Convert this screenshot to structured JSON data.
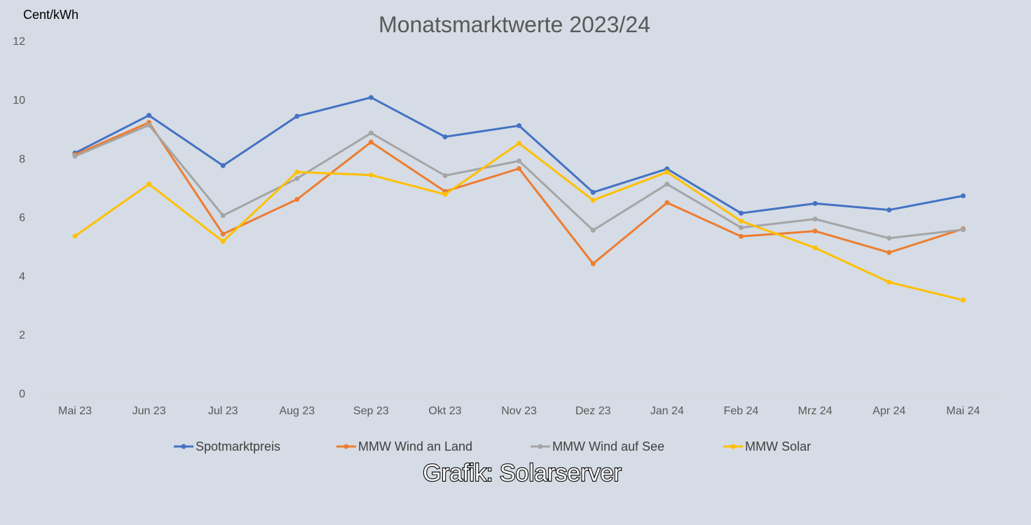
{
  "chart_data": {
    "type": "line",
    "title": "Monatsmarktwerte 2023/24",
    "ylabel": "Cent/kWh",
    "xlabel": "",
    "categories": [
      "Mai 23",
      "Jun 23",
      "Jul 23",
      "Aug 23",
      "Sep 23",
      "Okt 23",
      "Nov 23",
      "Dez 23",
      "Jan 24",
      "Feb 24",
      "Mrz 24",
      "Apr 24",
      "Mai 24"
    ],
    "ylim": [
      0,
      12
    ],
    "yticks": [
      0,
      2,
      4,
      6,
      8,
      10,
      12
    ],
    "grid": false,
    "legend_position": "bottom",
    "series": [
      {
        "name": "Spotmarktpreis",
        "color": "#4472c4",
        "values": [
          8.18,
          9.46,
          7.75,
          9.43,
          10.07,
          8.73,
          9.11,
          6.84,
          7.64,
          6.13,
          6.46,
          6.24,
          6.72
        ]
      },
      {
        "name": "MMW Wind an Land",
        "color": "#ed7d31",
        "values": [
          8.12,
          9.22,
          5.42,
          6.6,
          8.55,
          6.87,
          7.65,
          4.41,
          6.49,
          5.34,
          5.52,
          4.79,
          5.6
        ]
      },
      {
        "name": "MMW Wind auf See",
        "color": "#a5a5a5",
        "values": [
          8.07,
          9.13,
          6.05,
          7.31,
          8.86,
          7.41,
          7.91,
          5.55,
          7.12,
          5.64,
          5.93,
          5.28,
          5.57
        ]
      },
      {
        "name": "MMW Solar",
        "color": "#ffc000",
        "values": [
          5.35,
          7.12,
          5.17,
          7.53,
          7.43,
          6.77,
          8.51,
          6.57,
          7.53,
          5.86,
          4.95,
          3.78,
          3.17
        ]
      }
    ]
  },
  "credit": "Grafik: Solarserver"
}
